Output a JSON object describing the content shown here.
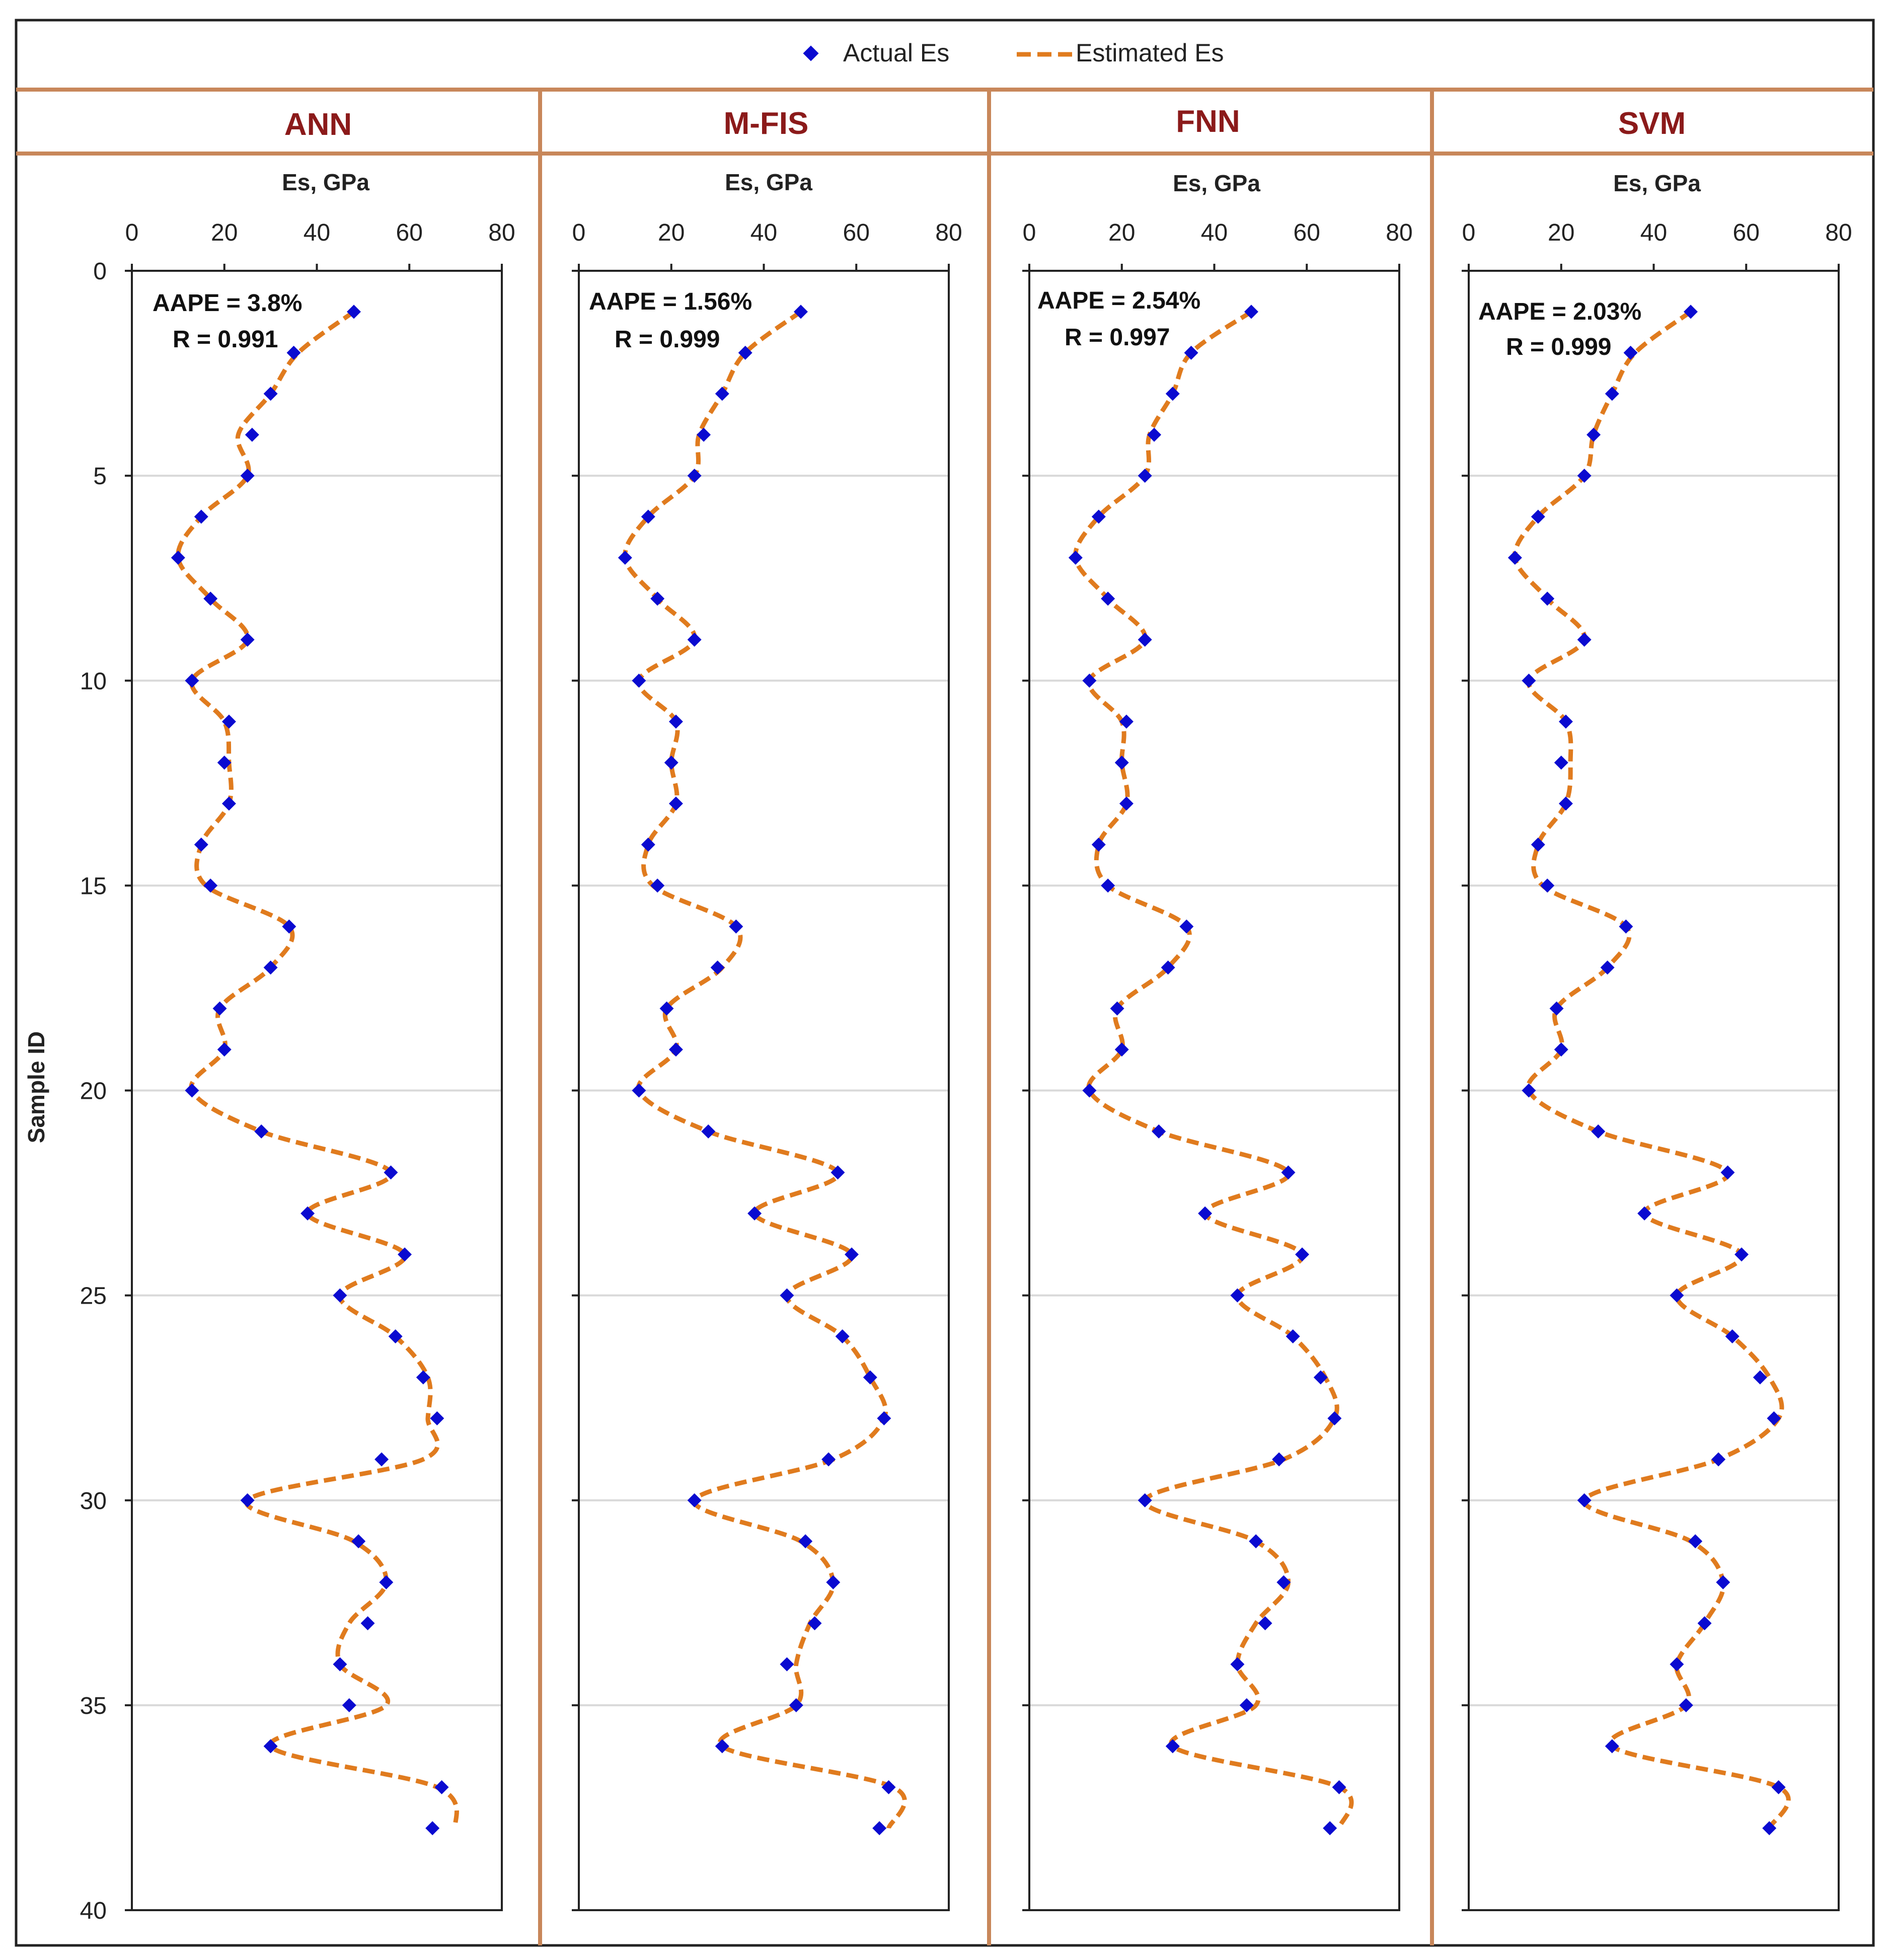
{
  "legend": {
    "actual_label": "Actual Es",
    "estimated_label": "Estimated Es"
  },
  "colors": {
    "actual_marker": "#0a0ad0",
    "estimated_line": "#e07b1e",
    "panel_border": "#c8875a",
    "panel_title": "#8b1a1a",
    "grid": "#d9d9d9",
    "axis": "#222222"
  },
  "shared_axes": {
    "xlabel": "Es, GPa",
    "ylabel": "Sample ID",
    "xlim": [
      0,
      80
    ],
    "xticks": [
      0,
      20,
      40,
      60,
      80
    ],
    "ylim": [
      0,
      40
    ],
    "yticks": [
      0,
      5,
      10,
      15,
      20,
      25,
      30,
      35,
      40
    ],
    "y_inverted": true,
    "grid": "horizontal"
  },
  "chart_data": [
    {
      "type": "line",
      "title": "ANN",
      "xlabel": "Es, GPa",
      "ylabel": "Sample ID",
      "stats": [
        "AAPE = 3.8%",
        "R = 0.991"
      ],
      "actual": [
        48,
        35,
        30,
        26,
        25,
        15,
        10,
        17,
        25,
        13,
        21,
        20,
        21,
        15,
        17,
        34,
        30,
        19,
        20,
        13,
        28,
        56,
        38,
        59,
        45,
        57,
        63,
        66,
        54,
        25,
        49,
        55,
        51,
        45,
        47,
        30,
        67,
        65
      ],
      "estimated": [
        48,
        36,
        30,
        23,
        25,
        15,
        10,
        17,
        25,
        13,
        20,
        21,
        21,
        15,
        16,
        34,
        30,
        19,
        20,
        13,
        28,
        56,
        38,
        59,
        45,
        57,
        64,
        64,
        63,
        25,
        48,
        55,
        47,
        45,
        55,
        30,
        66,
        70
      ]
    },
    {
      "type": "line",
      "title": "M-FIS",
      "xlabel": "Es, GPa",
      "ylabel": "Sample ID",
      "stats": [
        "AAPE = 1.56%",
        "R = 0.999"
      ],
      "actual": [
        48,
        36,
        31,
        27,
        25,
        15,
        10,
        17,
        25,
        13,
        21,
        20,
        21,
        15,
        17,
        34,
        30,
        19,
        21,
        13,
        28,
        56,
        38,
        59,
        45,
        57,
        63,
        66,
        54,
        25,
        49,
        55,
        51,
        45,
        47,
        31,
        67,
        65
      ],
      "estimated": [
        48,
        36,
        31,
        26,
        25,
        15,
        10,
        17,
        25,
        13,
        21,
        20,
        21,
        15,
        16,
        34,
        31,
        19,
        21,
        13,
        28,
        56,
        38,
        59,
        45,
        57,
        63,
        66,
        55,
        25,
        48,
        55,
        50,
        47,
        47,
        31,
        68,
        67
      ]
    },
    {
      "type": "line",
      "title": "FNN",
      "xlabel": "Es, GPa",
      "ylabel": "Sample ID",
      "stats": [
        "AAPE = 2.54%",
        "R = 0.997"
      ],
      "actual": [
        48,
        35,
        31,
        27,
        25,
        15,
        10,
        17,
        25,
        13,
        21,
        20,
        21,
        15,
        17,
        34,
        30,
        19,
        20,
        13,
        28,
        56,
        38,
        59,
        45,
        57,
        63,
        66,
        54,
        25,
        49,
        55,
        51,
        45,
        47,
        31,
        67,
        65
      ],
      "estimated": [
        48,
        35,
        31,
        26,
        25,
        15,
        10,
        17,
        25,
        13,
        20,
        20,
        21,
        15,
        17,
        34,
        30,
        19,
        20,
        13,
        28,
        56,
        38,
        59,
        45,
        57,
        64,
        66,
        55,
        25,
        49,
        56,
        49,
        45,
        49,
        31,
        67,
        67
      ]
    },
    {
      "type": "line",
      "title": "SVM",
      "xlabel": "Es, GPa",
      "ylabel": "Sample ID",
      "stats": [
        "AAPE = 2.03%",
        "R = 0.999"
      ],
      "actual": [
        48,
        35,
        31,
        27,
        25,
        15,
        10,
        17,
        25,
        13,
        21,
        20,
        21,
        15,
        17,
        34,
        30,
        19,
        20,
        13,
        28,
        56,
        38,
        59,
        45,
        57,
        63,
        66,
        54,
        25,
        49,
        55,
        51,
        45,
        47,
        31,
        67,
        65
      ],
      "estimated": [
        48,
        36,
        31,
        27,
        25,
        15,
        10,
        17,
        25,
        13,
        21,
        22,
        21,
        15,
        16,
        34,
        30,
        19,
        20,
        13,
        28,
        56,
        38,
        59,
        45,
        57,
        65,
        67,
        54,
        25,
        48,
        55,
        51,
        45,
        47,
        31,
        67,
        65
      ]
    }
  ]
}
